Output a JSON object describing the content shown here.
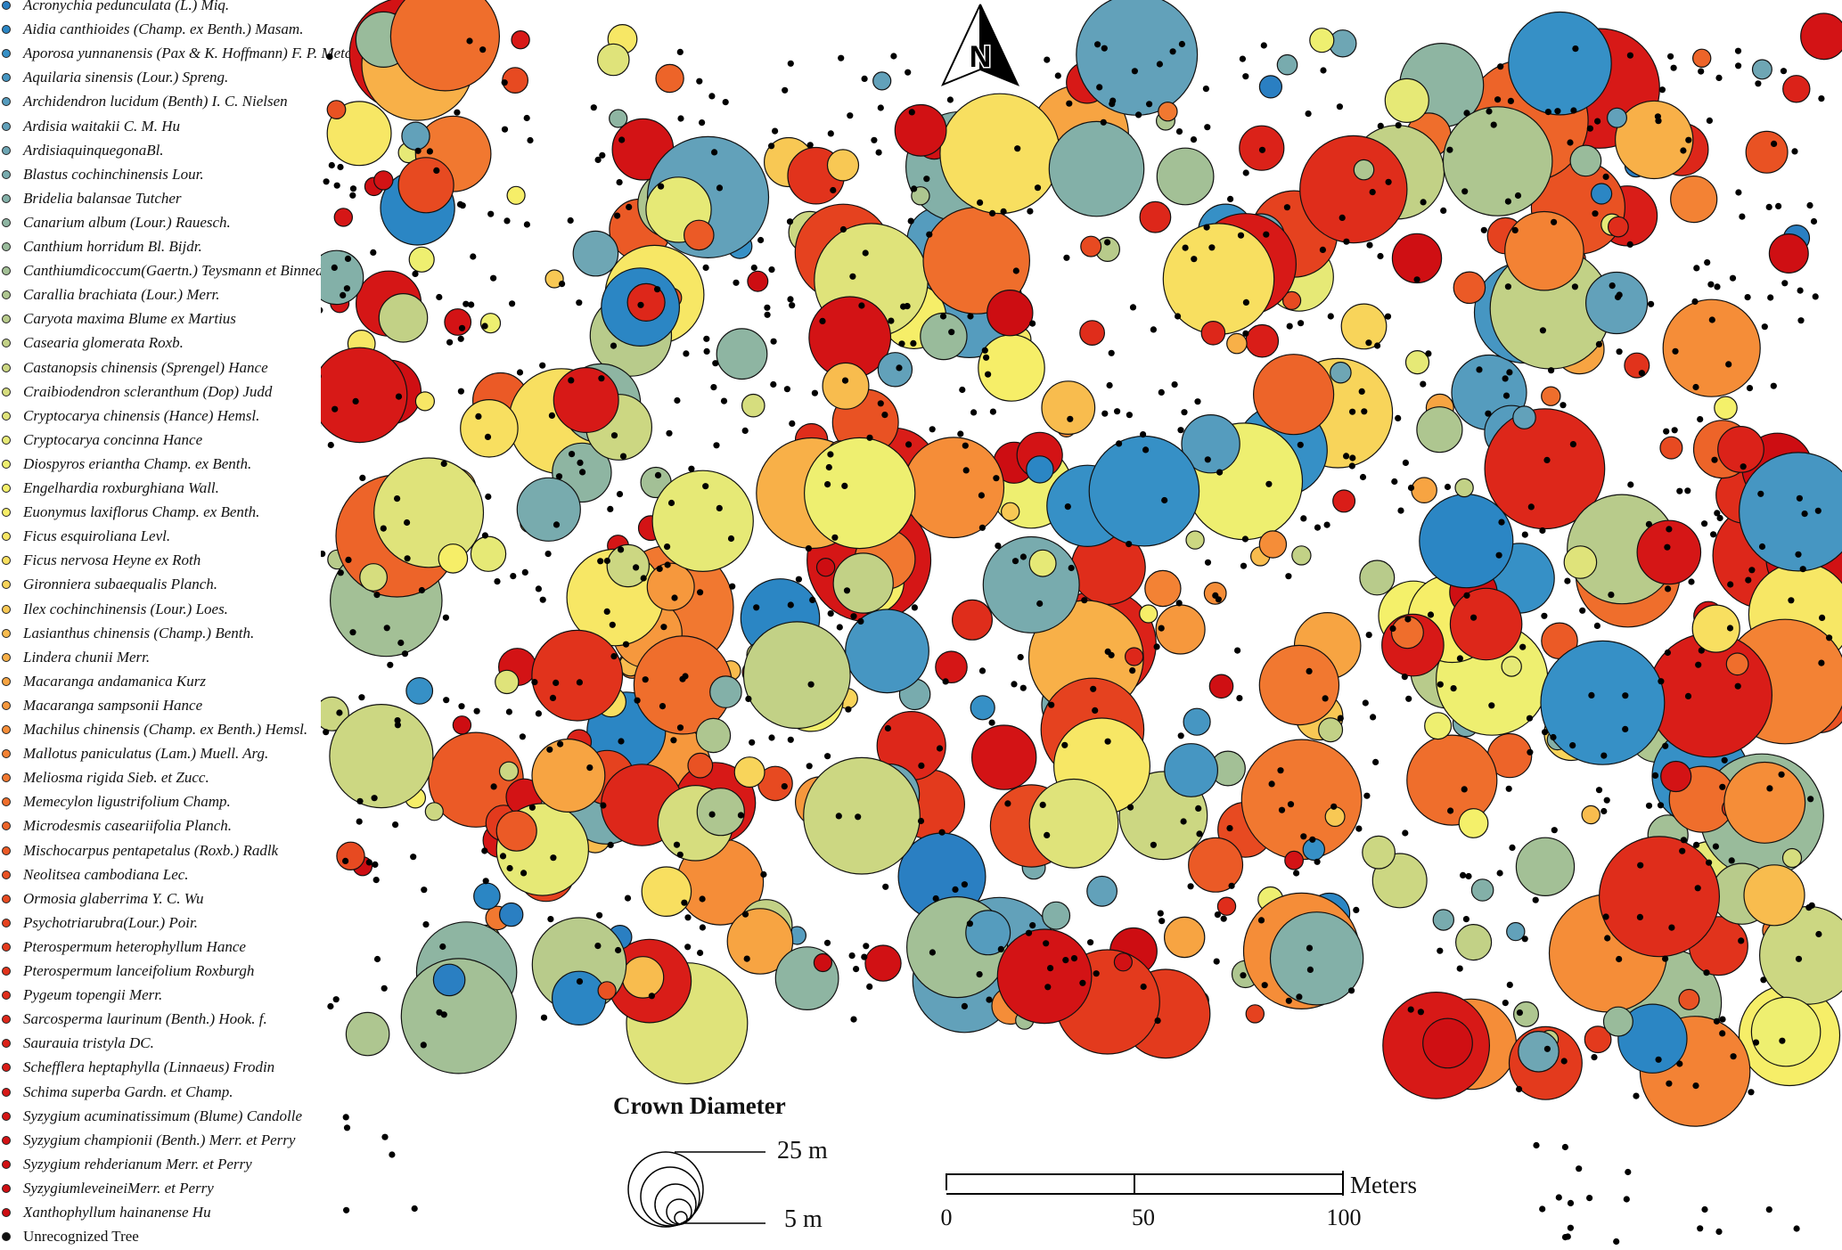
{
  "legend": {
    "items": [
      {
        "label": "Acronychia pedunculata (L.) Miq.",
        "color": "#2a7fc2"
      },
      {
        "label": "Aidia canthioides (Champ. ex Benth.) Masam.",
        "color": "#2b86c4"
      },
      {
        "label": "Aporosa yunnanensis (Pax & K. Hoffmann) F. P. Metcalf",
        "color": "#3690c6"
      },
      {
        "label": "Aquilaria sinensis (Lour.) Spreng.",
        "color": "#4696c2"
      },
      {
        "label": "Archidendron lucidum (Benth) I. C. Nielsen",
        "color": "#559cbe"
      },
      {
        "label": "Ardisia waitakii C. M. Hu",
        "color": "#62a1ba"
      },
      {
        "label": "ArdisiaquinquegonaBl.",
        "color": "#6ea6b4"
      },
      {
        "label": "Blastus cochinchinensis Lour.",
        "color": "#78abae"
      },
      {
        "label": "Bridelia balansae Tutcher",
        "color": "#83b0a8"
      },
      {
        "label": "Canarium album (Lour.) Rauesch.",
        "color": "#8eb5a2"
      },
      {
        "label": "Canthium horridum Bl. Bijdr.",
        "color": "#99bb9b"
      },
      {
        "label": "Canthiumdicoccum(Gaertn.) Teysmann et Binnedijk",
        "color": "#a3c096"
      },
      {
        "label": "Carallia brachiata (Lour.) Merr.",
        "color": "#aec690"
      },
      {
        "label": "Caryota maxima Blume ex Martius",
        "color": "#b8cb8b"
      },
      {
        "label": "Casearia glomerata Roxb.",
        "color": "#c2d186"
      },
      {
        "label": "Castanopsis chinensis (Sprengel) Hance",
        "color": "#ccd782"
      },
      {
        "label": "Craibiodendron scleranthum (Dop) Judd",
        "color": "#d6dd7e"
      },
      {
        "label": "Cryptocarya chinensis (Hance) Hemsl.",
        "color": "#dfe37a"
      },
      {
        "label": "Cryptocarya concinna Hance",
        "color": "#e6e976"
      },
      {
        "label": "Diospyros eriantha Champ. ex Benth.",
        "color": "#eeef70"
      },
      {
        "label": "Engelhardia roxburghiana Wall.",
        "color": "#f4f06a"
      },
      {
        "label": "Euonymus laxiflorus Champ. ex Benth.",
        "color": "#f6ee68"
      },
      {
        "label": "Ficus esquiroliana Levl.",
        "color": "#f7e765"
      },
      {
        "label": "Ficus nervosa Heyne ex Roth",
        "color": "#f8df60"
      },
      {
        "label": "Gironniera subaequalis Planch.",
        "color": "#f8d45a"
      },
      {
        "label": "Ilex cochinchinensis (Lour.) Loes.",
        "color": "#f8c854"
      },
      {
        "label": "Lasianthus chinensis (Champ.) Benth.",
        "color": "#f8bc4e"
      },
      {
        "label": "Lindera chunii Merr.",
        "color": "#f8b048"
      },
      {
        "label": "Macaranga andamanica Kurz",
        "color": "#f7a442"
      },
      {
        "label": "Macaranga sampsonii Hance",
        "color": "#f6983d"
      },
      {
        "label": "Machilus chinensis (Champ. ex Benth.) Hemsl.",
        "color": "#f58d38"
      },
      {
        "label": "Mallotus paniculatus (Lam.) Muell. Arg.",
        "color": "#f38234"
      },
      {
        "label": "Meliosma rigida Sieb. et Zucc.",
        "color": "#f17830"
      },
      {
        "label": "Memecylon ligustrifolium Champ.",
        "color": "#ef6e2c"
      },
      {
        "label": "Microdesmis caseariifolia Planch.",
        "color": "#ed6429"
      },
      {
        "label": "Mischocarpus pentapetalus (Roxb.) Radlk",
        "color": "#eb5a26"
      },
      {
        "label": "Neolitsea cambodiana Lec.",
        "color": "#e95223"
      },
      {
        "label": "Ormosia glaberrima Y. C. Wu",
        "color": "#e74a21"
      },
      {
        "label": "Psychotriarubra(Lour.) Poir.",
        "color": "#e5421f"
      },
      {
        "label": "Pterospermum heterophyllum Hance",
        "color": "#e33a1d"
      },
      {
        "label": "Pterospermum lanceifolium Roxburgh",
        "color": "#e1331c"
      },
      {
        "label": "Pygeum topengii Merr.",
        "color": "#df2d1b"
      },
      {
        "label": "Sarcosperma laurinum (Benth.) Hook. f.",
        "color": "#dd271a"
      },
      {
        "label": "Saurauia tristyla DC.",
        "color": "#db2219"
      },
      {
        "label": "Schefflera heptaphylla (Linnaeus) Frodin",
        "color": "#d91d18"
      },
      {
        "label": "Schima superba Gardn. et Champ.",
        "color": "#d71917"
      },
      {
        "label": "Syzygium acuminatissimum (Blume) Candolle",
        "color": "#d51616"
      },
      {
        "label": "Syzygium championii (Benth.) Merr. et Perry",
        "color": "#d31315"
      },
      {
        "label": "Syzygium rehderianum Merr. et Perry",
        "color": "#d11114"
      },
      {
        "label": "SyzygiumleveineiMerr. et Perry",
        "color": "#cf0f13"
      },
      {
        "label": "Xanthophyllum hainanense Hu",
        "color": "#cd0d12"
      },
      {
        "label": "Unrecognized Tree",
        "color": "#111111"
      }
    ]
  },
  "north_arrow": {
    "label": "N"
  },
  "crown_diameter": {
    "title": "Crown Diameter",
    "max_label": "25 m",
    "min_label": "5 m",
    "max_m": 25,
    "min_m": 5
  },
  "scale_bar": {
    "ticks": [
      "0",
      "50",
      "100"
    ],
    "unit": "Meters"
  }
}
